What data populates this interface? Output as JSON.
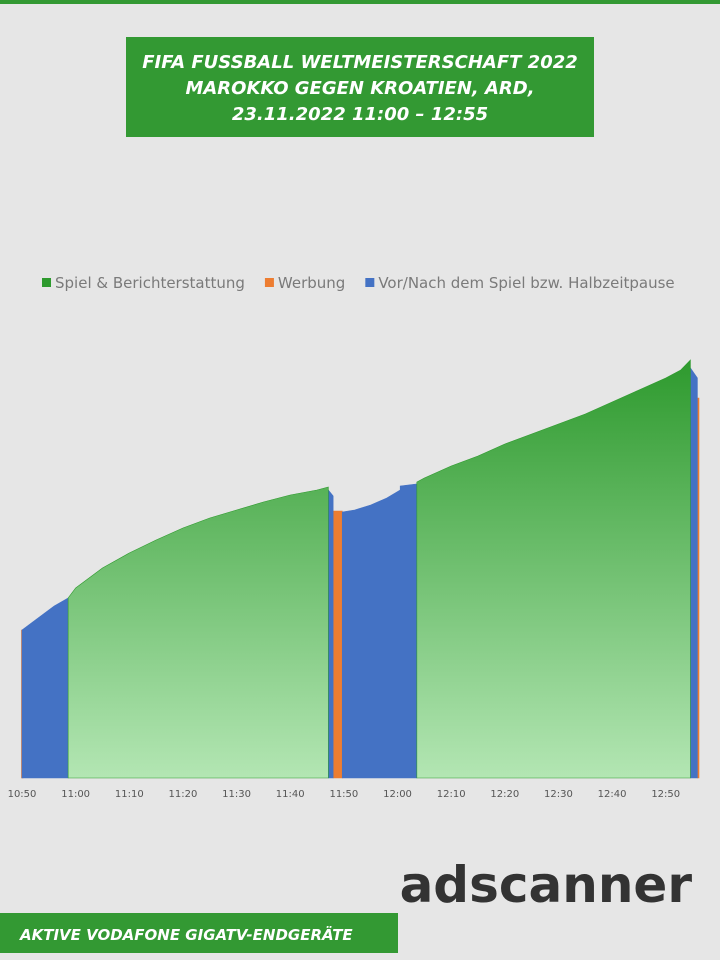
{
  "header": {
    "title_lines": [
      "FIFA FUSSBALL WELTMEISTERSCHAFT 2022",
      "MAROKKO GEGEN KROATIEN, ARD,",
      "23.11.2022  11:00 – 12:55"
    ]
  },
  "chart_data": {
    "type": "area",
    "xlim": [
      650,
      776.2
    ],
    "ylim": [
      0,
      450
    ],
    "xticks": [
      {
        "value": 650,
        "label": "10:50"
      },
      {
        "value": 660,
        "label": "11:00"
      },
      {
        "value": 670,
        "label": "11:10"
      },
      {
        "value": 680,
        "label": "11:20"
      },
      {
        "value": 690,
        "label": "11:30"
      },
      {
        "value": 700,
        "label": "11:40"
      },
      {
        "value": 710,
        "label": "11:50"
      },
      {
        "value": 720,
        "label": "12:00"
      },
      {
        "value": 730,
        "label": "12:10"
      },
      {
        "value": 740,
        "label": "12:20"
      },
      {
        "value": 750,
        "label": "12:30"
      },
      {
        "value": 760,
        "label": "12:40"
      },
      {
        "value": 770,
        "label": "12:50"
      }
    ],
    "series": [
      {
        "name": "Spiel & Berichterstattung",
        "color": "#2e9a2e",
        "gradient_to": "#b3e6b3",
        "x": [
          658.6,
          660,
          665,
          670,
          675,
          680,
          685,
          690,
          695,
          700,
          705,
          707.1,
          715,
          723.6,
          725,
          730,
          735,
          740,
          745,
          750,
          755,
          760,
          765,
          770,
          772.8,
          774.6
        ],
        "values": [
          180,
          190,
          210,
          225,
          238,
          250,
          260,
          268,
          276,
          283,
          288,
          291,
          null,
          296,
          300,
          312,
          322,
          334,
          344,
          354,
          364,
          376,
          388,
          400,
          408,
          418
        ]
      },
      {
        "name": "Werbung",
        "color": "#ed7d31",
        "x": [
          649.9,
          650.2,
          679,
          708,
          709.7,
          742,
          775.9,
          776.2
        ],
        "values": [
          148,
          148,
          null,
          267,
          267,
          null,
          380,
          380
        ]
      },
      {
        "name": "Vor/Nach dem Spiel bzw. Halbzeitpause",
        "color": "#4472c4",
        "x": [
          650,
          652,
          654,
          656,
          658.6,
          683,
          707.1,
          708,
          709,
          709.7,
          712,
          715,
          718,
          720.5,
          721,
          720.5,
          723.6,
          749,
          774.6,
          775.9
        ],
        "values": [
          148,
          156,
          164,
          172,
          180,
          null,
          288,
          282,
          null,
          266,
          268,
          273,
          280,
          288,
          null,
          292,
          294,
          null,
          410,
          400
        ]
      }
    ]
  },
  "logo": "adscanner",
  "footer": "AKTIVE VODAFONE GIGATV-ENDGERÄTE"
}
